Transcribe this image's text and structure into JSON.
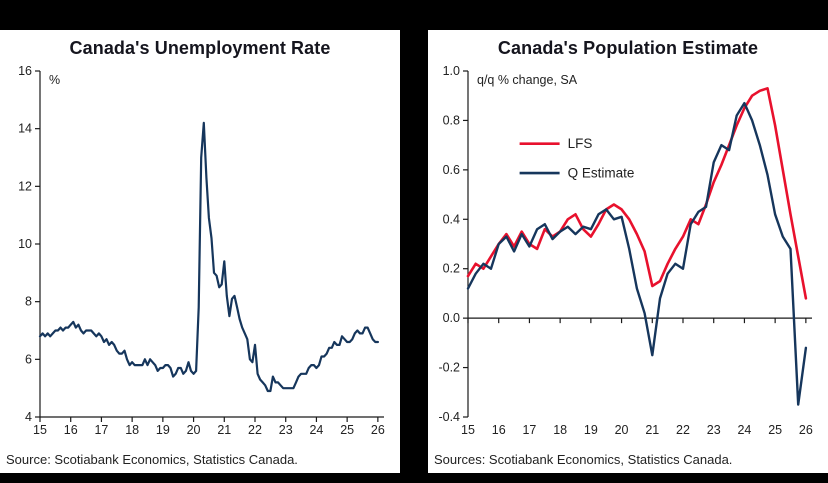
{
  "colors": {
    "background": "#000000",
    "panel": "#ffffff",
    "ink": "#1a1a1a",
    "navy": "#16365c",
    "red": "#e8112d"
  },
  "chart_data": [
    {
      "type": "line",
      "title": "Canada's Unemployment Rate",
      "unit_label": "%",
      "source": "Source: Scotiabank Economics, Statistics Canada.",
      "xlabel": "",
      "ylabel": "%",
      "xlim": [
        2015,
        2026.2
      ],
      "ylim": [
        4,
        16
      ],
      "yticks": [
        4,
        6,
        8,
        10,
        12,
        14,
        16
      ],
      "ytick_decimals": 0,
      "xticks": [
        2015,
        2016,
        2017,
        2018,
        2019,
        2020,
        2021,
        2022,
        2023,
        2024,
        2025,
        2026
      ],
      "xtick_labels": [
        "15",
        "16",
        "17",
        "18",
        "19",
        "20",
        "21",
        "22",
        "23",
        "24",
        "25",
        "26"
      ],
      "grid": false,
      "x_axis_at_zero": false,
      "legend": false,
      "series": [
        {
          "name": "Unemployment rate",
          "color": "#16365c",
          "width": 2.2,
          "x_start": 2015.0,
          "x_step": 0.0833333,
          "values": [
            6.8,
            6.9,
            6.8,
            6.9,
            6.8,
            6.9,
            7.0,
            7.0,
            7.1,
            7.0,
            7.1,
            7.1,
            7.2,
            7.3,
            7.1,
            7.2,
            7.0,
            6.9,
            7.0,
            7.0,
            7.0,
            6.9,
            6.8,
            6.9,
            6.8,
            6.6,
            6.7,
            6.5,
            6.6,
            6.5,
            6.3,
            6.2,
            6.2,
            6.3,
            6.0,
            5.8,
            5.9,
            5.8,
            5.8,
            5.8,
            5.8,
            6.0,
            5.8,
            6.0,
            5.9,
            5.8,
            5.6,
            5.7,
            5.7,
            5.8,
            5.8,
            5.7,
            5.4,
            5.5,
            5.7,
            5.7,
            5.5,
            5.6,
            5.9,
            5.6,
            5.5,
            5.6,
            7.8,
            13.0,
            14.2,
            12.3,
            10.9,
            10.2,
            9.0,
            8.9,
            8.5,
            8.6,
            9.4,
            8.2,
            7.5,
            8.1,
            8.2,
            7.8,
            7.4,
            7.1,
            6.9,
            6.7,
            6.0,
            5.9,
            6.5,
            5.5,
            5.3,
            5.2,
            5.1,
            4.9,
            4.9,
            5.4,
            5.2,
            5.2,
            5.1,
            5.0,
            5.0,
            5.0,
            5.0,
            5.0,
            5.2,
            5.4,
            5.5,
            5.5,
            5.5,
            5.7,
            5.8,
            5.8,
            5.7,
            5.8,
            6.1,
            6.1,
            6.2,
            6.4,
            6.4,
            6.6,
            6.5,
            6.5,
            6.8,
            6.7,
            6.6,
            6.6,
            6.7,
            6.9,
            7.0,
            6.9,
            6.9,
            7.1,
            7.1,
            6.9,
            6.7,
            6.6,
            6.6
          ]
        }
      ]
    },
    {
      "type": "line",
      "title": "Canada's Population Estimate",
      "unit_label": "q/q % change, SA",
      "source": "Sources: Scotiabank Economics, Statistics Canada.",
      "xlabel": "",
      "ylabel": "q/q % change, SA",
      "xlim": [
        2015,
        2026.2
      ],
      "ylim": [
        -0.4,
        1.0
      ],
      "yticks": [
        -0.4,
        -0.2,
        0.0,
        0.2,
        0.4,
        0.6,
        0.8,
        1.0
      ],
      "ytick_decimals": 1,
      "xticks": [
        2015,
        2016,
        2017,
        2018,
        2019,
        2020,
        2021,
        2022,
        2023,
        2024,
        2025,
        2026
      ],
      "xtick_labels": [
        "15",
        "16",
        "17",
        "18",
        "19",
        "20",
        "21",
        "22",
        "23",
        "24",
        "25",
        "26"
      ],
      "grid": false,
      "x_axis_at_zero": true,
      "legend": true,
      "legend_position": "inside-upper-left",
      "series": [
        {
          "name": "LFS",
          "color": "#e8112d",
          "width": 2.6,
          "x_start": 2015.0,
          "x_step": 0.25,
          "values": [
            0.17,
            0.22,
            0.2,
            0.25,
            0.3,
            0.34,
            0.29,
            0.35,
            0.3,
            0.28,
            0.36,
            0.33,
            0.35,
            0.4,
            0.42,
            0.36,
            0.33,
            0.38,
            0.44,
            0.46,
            0.44,
            0.4,
            0.34,
            0.27,
            0.13,
            0.15,
            0.22,
            0.28,
            0.33,
            0.4,
            0.38,
            0.46,
            0.55,
            0.62,
            0.7,
            0.78,
            0.85,
            0.9,
            0.92,
            0.93,
            0.78,
            0.6,
            0.42,
            0.25,
            0.08
          ]
        },
        {
          "name": "Q Estimate",
          "color": "#16365c",
          "width": 2.4,
          "x_start": 2015.0,
          "x_step": 0.25,
          "values": [
            0.12,
            0.18,
            0.22,
            0.2,
            0.3,
            0.33,
            0.27,
            0.34,
            0.29,
            0.36,
            0.38,
            0.32,
            0.35,
            0.37,
            0.34,
            0.37,
            0.36,
            0.42,
            0.44,
            0.4,
            0.41,
            0.28,
            0.12,
            0.02,
            -0.15,
            0.08,
            0.18,
            0.22,
            0.2,
            0.38,
            0.43,
            0.45,
            0.63,
            0.7,
            0.68,
            0.82,
            0.87,
            0.8,
            0.7,
            0.58,
            0.42,
            0.33,
            0.28,
            -0.35,
            -0.12
          ]
        }
      ]
    }
  ]
}
